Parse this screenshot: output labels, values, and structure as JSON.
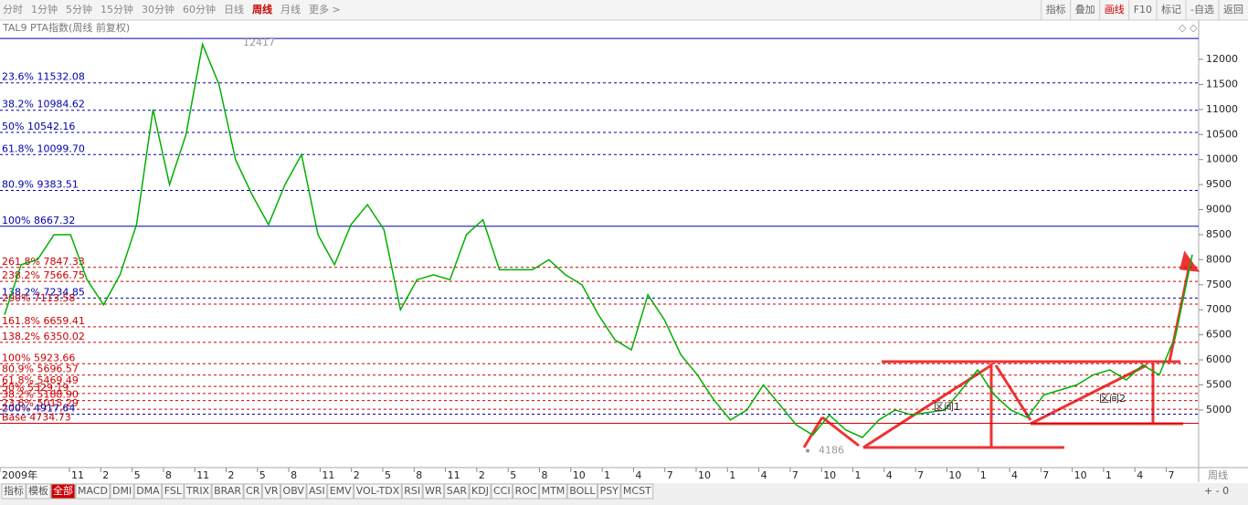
{
  "toolbar": {
    "periods": [
      {
        "label": "分时"
      },
      {
        "label": "1分钟"
      },
      {
        "label": "5分钟"
      },
      {
        "label": "15分钟"
      },
      {
        "label": "30分钟"
      },
      {
        "label": "60分钟"
      },
      {
        "label": "日线"
      },
      {
        "label": "周线",
        "active": true
      },
      {
        "label": "月线"
      },
      {
        "label": "更多 >"
      }
    ],
    "buttons": [
      {
        "label": "指标"
      },
      {
        "label": "叠加"
      },
      {
        "label": "画线",
        "active": true
      },
      {
        "label": "F10"
      },
      {
        "label": "标记"
      },
      {
        "label": "-自选"
      },
      {
        "label": "返回"
      }
    ]
  },
  "chart_data": {
    "type": "line",
    "title": "TAL9 PTA指数(周线 前复权)",
    "color": "#00b000",
    "values": [
      6900,
      7900,
      8000,
      8500,
      8500,
      7600,
      7100,
      7700,
      8700,
      11000,
      9500,
      10500,
      12300,
      11500,
      10000,
      9300,
      8700,
      9500,
      10100,
      8500,
      7900,
      8700,
      9100,
      8600,
      7000,
      7600,
      7700,
      7600,
      8500,
      8800,
      7800,
      7800,
      7800,
      8000,
      7700,
      7500,
      6900,
      6400,
      6200,
      7300,
      6800,
      6100,
      5700,
      5200,
      4800,
      5000,
      5500,
      5100,
      4700,
      4500,
      4900,
      4600,
      4450,
      4800,
      5000,
      4900,
      4950,
      5000,
      5400,
      5800,
      5300,
      5000,
      4850,
      5300,
      5400,
      5500,
      5700,
      5800,
      5600,
      5900,
      5700,
      6500,
      8100
    ],
    "ylim": [
      3850,
      12420
    ],
    "yticks": [
      5000,
      5500,
      6000,
      6500,
      7000,
      7500,
      8000,
      8500,
      9000,
      9500,
      10000,
      10500,
      11000,
      11500,
      12000
    ],
    "xtick_labels": [
      "2009年",
      "11",
      "2",
      "5",
      "8",
      "11",
      "2",
      "5",
      "8",
      "11",
      "2",
      "5",
      "8",
      "11",
      "2",
      "5",
      "8",
      "10",
      "1",
      "4",
      "7",
      "10",
      "1",
      "4",
      "7",
      "10",
      "1",
      "4",
      "7",
      "10",
      "1",
      "4",
      "7",
      "10",
      "1",
      "4",
      "7"
    ],
    "fib_levels": [
      {
        "label": "23.6% 11532.08",
        "value": 11532.08,
        "color": "#0000aa"
      },
      {
        "label": "38.2% 10984.62",
        "value": 10984.62,
        "color": "#0000aa"
      },
      {
        "label": "50% 10542.16",
        "value": 10542.16,
        "color": "#0000aa"
      },
      {
        "label": "61.8% 10099.70",
        "value": 10099.7,
        "color": "#0000aa"
      },
      {
        "label": "80.9% 9383.51",
        "value": 9383.51,
        "color": "#0000aa"
      },
      {
        "label": "100% 8667.32",
        "value": 8667.32,
        "color": "#0000aa",
        "solid": true
      },
      {
        "label": "261.8% 7847.33",
        "value": 7847.33,
        "color": "#cc0000"
      },
      {
        "label": "238.2% 7566.75",
        "value": 7566.75,
        "color": "#cc0000"
      },
      {
        "label": "138.2% 7234.85",
        "value": 7234.85,
        "color": "#0000aa"
      },
      {
        "label": "200% 7113.58",
        "value": 7113.58,
        "color": "#cc0000"
      },
      {
        "label": "161.8% 6659.41",
        "value": 6659.41,
        "color": "#cc0000"
      },
      {
        "label": "138.2% 6350.02",
        "value": 6350.02,
        "color": "#cc0000"
      },
      {
        "label": "100% 5923.66",
        "value": 5923.66,
        "color": "#cc0000"
      },
      {
        "label": "80.9% 5696.57",
        "value": 5696.57,
        "color": "#cc0000"
      },
      {
        "label": "61.8% 5469.49",
        "value": 5469.49,
        "color": "#cc0000"
      },
      {
        "label": "50% 5329.19",
        "value": 5329.19,
        "color": "#cc0000"
      },
      {
        "label": "38.2% 5188.90",
        "value": 5188.9,
        "color": "#cc0000"
      },
      {
        "label": "23.6% 5015.29",
        "value": 5015.29,
        "color": "#cc0000"
      },
      {
        "label": "200% 4917.64",
        "value": 4917.64,
        "color": "#0000aa"
      },
      {
        "label": "Base 4734.73",
        "value": 4734.73,
        "color": "#cc0000",
        "solid": true
      }
    ],
    "high": {
      "label": "12417",
      "value": 12417
    },
    "low": {
      "label": "4186",
      "value": 4186
    },
    "zone_labels": [
      "区间1",
      "区间2"
    ],
    "period_label": "周线"
  },
  "indicator_tabs": [
    "指标",
    "模板",
    "全部",
    "MACD",
    "DMI",
    "DMA",
    "FSL",
    "TRIX",
    "BRAR",
    "CR",
    "VR",
    "OBV",
    "ASI",
    "EMV",
    "VOL-TDX",
    "RSI",
    "WR",
    "SAR",
    "KDJ",
    "CCI",
    "ROC",
    "MTM",
    "BOLL",
    "PSY",
    "MCST"
  ]
}
